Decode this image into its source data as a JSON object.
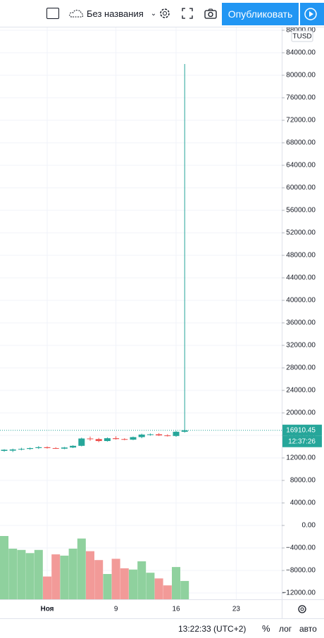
{
  "toolbar": {
    "layout_name": "Без названия",
    "publish": "Опубликовать"
  },
  "chart_data": {
    "type": "candlestick",
    "currency_label": "TUSD",
    "categories": [
      null,
      null,
      null,
      null,
      null,
      "Ноя",
      null,
      null,
      null,
      null,
      null,
      null,
      null,
      "9",
      null,
      null,
      null,
      null,
      null,
      null,
      "16",
      null,
      null,
      null,
      null,
      null,
      null,
      "23"
    ],
    "open": [
      13250,
      13300,
      13500,
      13600,
      13750,
      13900,
      13750,
      13650,
      13850,
      14150,
      15450,
      15350,
      15000,
      15500,
      15350,
      15250,
      15700,
      16150,
      16200,
      16000,
      15900,
      16650,
      null,
      null,
      null,
      null,
      null,
      null
    ],
    "high": [
      13550,
      13650,
      13800,
      13850,
      14100,
      14050,
      13900,
      13950,
      14250,
      15600,
      15800,
      15550,
      15650,
      15850,
      15500,
      15800,
      16300,
      16350,
      16400,
      16200,
      16800,
      82000,
      null,
      null,
      null,
      null,
      null,
      null
    ],
    "low": [
      13100,
      13050,
      13350,
      13450,
      13600,
      13650,
      13600,
      13550,
      13750,
      14050,
      15050,
      14800,
      14900,
      15250,
      15150,
      15150,
      15500,
      15950,
      15900,
      15800,
      15750,
      16500,
      null,
      null,
      null,
      null,
      null,
      null
    ],
    "close": [
      13450,
      13500,
      13600,
      13750,
      13900,
      13750,
      13650,
      13850,
      14150,
      15450,
      15350,
      15000,
      15500,
      15350,
      15250,
      15700,
      16150,
      16200,
      16000,
      15900,
      16650,
      16910.45,
      null,
      null,
      null,
      null,
      null,
      null
    ],
    "volume": [
      100,
      80,
      78,
      73,
      78,
      36,
      71,
      69,
      80,
      96,
      76,
      62,
      40,
      64,
      49,
      47,
      60,
      42,
      33,
      22,
      51,
      29,
      null,
      null,
      null,
      null,
      null,
      null
    ],
    "volume_ylim": [
      0,
      100
    ],
    "up_color": "#26a69a",
    "down_color": "#ef5350",
    "volume_up_color": "#8fd19e",
    "volume_down_color": "#f29a98",
    "countdown": "12:37:26",
    "ylim": [
      -13125,
      88625
    ],
    "yticks": [
      {
        "value": 88000,
        "label": "88000.00"
      },
      {
        "value": 84000,
        "label": "84000.00"
      },
      {
        "value": 80000,
        "label": "80000.00"
      },
      {
        "value": 76000,
        "label": "76000.00"
      },
      {
        "value": 72000,
        "label": "72000.00"
      },
      {
        "value": 68000,
        "label": "68000.00"
      },
      {
        "value": 64000,
        "label": "64000.00"
      },
      {
        "value": 60000,
        "label": "60000.00"
      },
      {
        "value": 56000,
        "label": "56000.00"
      },
      {
        "value": 52000,
        "label": "52000.00"
      },
      {
        "value": 48000,
        "label": "48000.00"
      },
      {
        "value": 44000,
        "label": "44000.00"
      },
      {
        "value": 40000,
        "label": "40000.00"
      },
      {
        "value": 36000,
        "label": "36000.00"
      },
      {
        "value": 32000,
        "label": "32000.00"
      },
      {
        "value": 28000,
        "label": "28000.00"
      },
      {
        "value": 24000,
        "label": "24000.00"
      },
      {
        "value": 20000,
        "label": "20000.00"
      },
      {
        "value": 16000,
        "label": "16000.00"
      },
      {
        "value": 12000,
        "label": "12000.00"
      },
      {
        "value": 8000,
        "label": "8000.00"
      },
      {
        "value": 4000,
        "label": "4000.00"
      },
      {
        "value": 0,
        "label": "0.00"
      },
      {
        "value": -4000,
        "label": "−4000.00"
      },
      {
        "value": -8000,
        "label": "−8000.00"
      },
      {
        "value": -12000,
        "label": "−12000.00"
      }
    ],
    "grid": true
  },
  "status_bar": {
    "time": "13:22:33 (UTC+2)",
    "percent": "%",
    "log": "лог",
    "auto": "авто"
  }
}
